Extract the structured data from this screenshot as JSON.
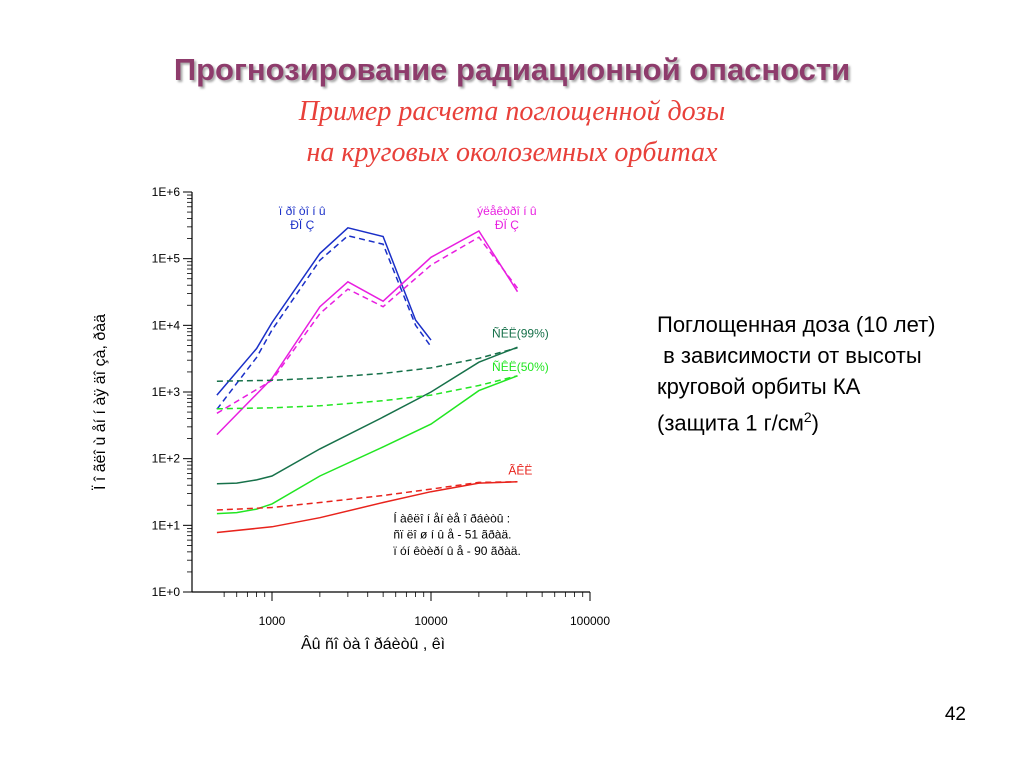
{
  "slide": {
    "title": "Прогнозирование радиационной опасности",
    "subtitle_line1": "Пример расчета поглощенной дозы",
    "subtitle_line2": "на круговых околоземных орбитах",
    "caption": {
      "line1": "Поглощенная доза (10 лет)",
      "line2": " в зависимости от высоты",
      "line3": "круговой орбиты КА",
      "line4_prefix": "(защита 1 г/см",
      "line4_sup": "2",
      "line4_suffix": ")"
    },
    "page_number": "42"
  },
  "chart_data": {
    "type": "line",
    "xscale": "log",
    "yscale": "log",
    "xlim": [
      450,
      100000
    ],
    "ylim": [
      1,
      1000000
    ],
    "xlabel": "Âû ñî òà î ðáèòû , êì",
    "ylabel": "Ï î ãëî ù åí í àÿ äî çà, ðàä",
    "xticks": [
      {
        "value": 1000,
        "label": "1000"
      },
      {
        "value": 10000,
        "label": "10000"
      },
      {
        "value": 100000,
        "label": "100000"
      }
    ],
    "yticks": [
      {
        "value": 1,
        "label": "1E+0"
      },
      {
        "value": 10,
        "label": "1E+1"
      },
      {
        "value": 100,
        "label": "1E+2"
      },
      {
        "value": 1000,
        "label": "1E+3"
      },
      {
        "value": 10000,
        "label": "1E+4"
      },
      {
        "value": 100000,
        "label": "1E+5"
      },
      {
        "value": 1000000,
        "label": "1E+6"
      }
    ],
    "grid": false,
    "series": [
      {
        "color": "#1a2fc8",
        "dash": false,
        "x": [
          450,
          800,
          1000,
          2000,
          3000,
          5000,
          8000,
          10000
        ],
        "y": [
          900,
          4500,
          11000,
          120000,
          290000,
          215000,
          12000,
          6000
        ]
      },
      {
        "color": "#1a2fc8",
        "dash": true,
        "x": [
          450,
          800,
          1000,
          2000,
          3000,
          5000,
          8000,
          10000
        ],
        "y": [
          550,
          3300,
          8500,
          95000,
          220000,
          165000,
          10000,
          4800
        ]
      },
      {
        "color": "#e81ee0",
        "dash": false,
        "x": [
          450,
          1000,
          2000,
          3000,
          5000,
          10000,
          20000,
          35000
        ],
        "y": [
          230,
          1600,
          19000,
          45000,
          23000,
          105000,
          260000,
          32000
        ]
      },
      {
        "color": "#e81ee0",
        "dash": true,
        "x": [
          450,
          1000,
          2000,
          3000,
          5000,
          10000,
          20000,
          35000
        ],
        "y": [
          480,
          1500,
          15000,
          35000,
          19000,
          80000,
          210000,
          36000
        ]
      },
      {
        "color": "#17714a",
        "dash": false,
        "x": [
          450,
          600,
          800,
          1000,
          2000,
          5000,
          10000,
          20000,
          35000
        ],
        "y": [
          42,
          43,
          48,
          55,
          140,
          420,
          1000,
          2800,
          4700
        ]
      },
      {
        "color": "#17714a",
        "dash": true,
        "x": [
          450,
          1000,
          2000,
          5000,
          10000,
          20000,
          35000
        ],
        "y": [
          1450,
          1500,
          1620,
          1900,
          2300,
          3200,
          4600
        ]
      },
      {
        "color": "#22e622",
        "dash": false,
        "x": [
          450,
          600,
          800,
          1000,
          2000,
          5000,
          10000,
          20000,
          35000
        ],
        "y": [
          15,
          15.5,
          17.5,
          21,
          55,
          150,
          330,
          1050,
          1750
        ]
      },
      {
        "color": "#22e622",
        "dash": true,
        "x": [
          450,
          1000,
          2000,
          5000,
          10000,
          20000,
          35000
        ],
        "y": [
          560,
          580,
          620,
          740,
          900,
          1250,
          1750
        ]
      },
      {
        "color": "#e8231c",
        "dash": false,
        "x": [
          450,
          1000,
          2000,
          5000,
          10000,
          20000,
          35000
        ],
        "y": [
          7.8,
          9.5,
          13,
          22,
          32,
          43,
          45
        ]
      },
      {
        "color": "#e8231c",
        "dash": true,
        "x": [
          450,
          1000,
          2000,
          5000,
          10000,
          20000,
          35000
        ],
        "y": [
          17,
          18.5,
          22,
          28,
          35,
          44,
          45
        ]
      }
    ],
    "annotations": [
      {
        "text": "ï ðî òî í û",
        "color": "#1a2fc8",
        "x": 1550,
        "y": 450000
      },
      {
        "text": "ÐÏ Ç",
        "color": "#1a2fc8",
        "x": 1550,
        "y": 280000
      },
      {
        "text": "ýëåêòðî í û",
        "color": "#e81ee0",
        "x": 30000,
        "y": 450000
      },
      {
        "text": "ÐÏ Ç",
        "color": "#e81ee0",
        "x": 30000,
        "y": 280000
      },
      {
        "text": "ÑÊË(99%)",
        "color": "#17714a",
        "x": 36500,
        "y": 6600
      },
      {
        "text": "ÑÊË(50%)",
        "color": "#22e622",
        "x": 36500,
        "y": 2050
      },
      {
        "text": "ÃÊË",
        "color": "#e8231c",
        "x": 36500,
        "y": 58
      },
      {
        "text": "Í àêëî í åí èå î ðáèòû :",
        "color": "#000000",
        "x": 5800,
        "y": 11
      },
      {
        "text": "ñï ëî ø í û å - 51 ãðàä.",
        "color": "#000000",
        "x": 5800,
        "y": 6.3
      },
      {
        "text": "ï óí êòèðí û å - 90 ãðàä.",
        "color": "#000000",
        "x": 5800,
        "y": 3.6
      }
    ]
  }
}
